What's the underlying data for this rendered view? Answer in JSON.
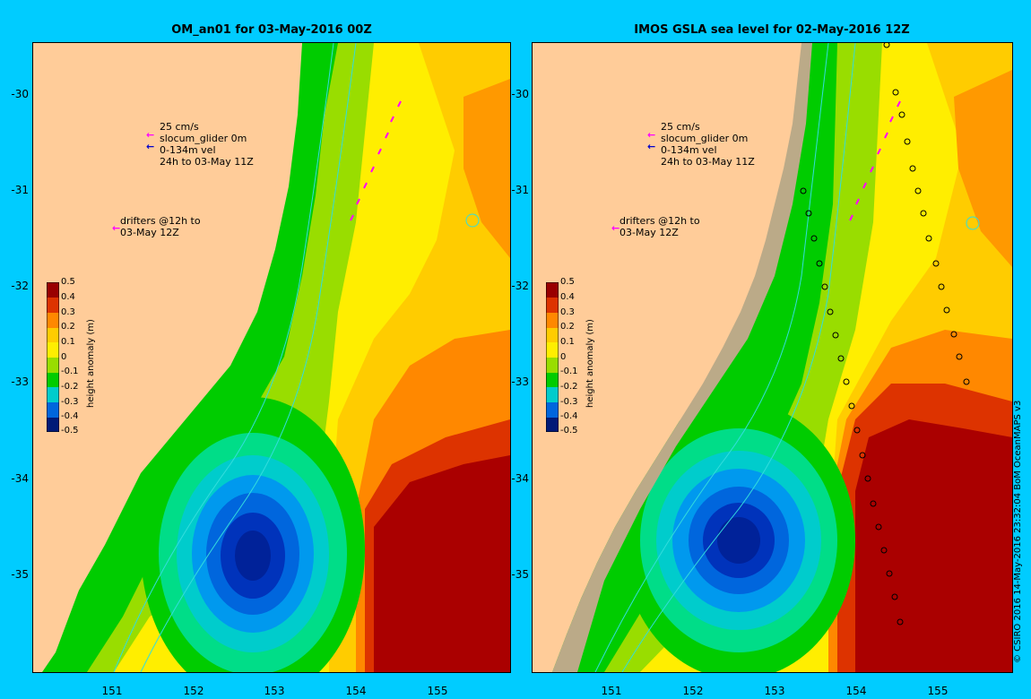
{
  "left_title": "OM_an01 for 03-May-2016 00Z",
  "right_title": "IMOS GSLA sea level  for 02-May-2016 12Z",
  "y_ticks": [
    "-30",
    "-31",
    "-32",
    "-33",
    "-34",
    "-35"
  ],
  "x_ticks": [
    "151",
    "152",
    "153",
    "154",
    "155"
  ],
  "legend_vel": {
    "scale": "25 cm/s",
    "glider": "slocum_glider 0m",
    "vel": "0-134m vel",
    "window": "24h to 03-May 11Z"
  },
  "legend_drifters": {
    "line1": "drifters @12h to",
    "line2": "03-May 12Z"
  },
  "colorbar": {
    "title": "height anomaly (m)",
    "ticks": [
      "0.5",
      "0.4",
      "0.3",
      "0.2",
      "0.1",
      "0",
      "-0.1",
      "-0.2",
      "-0.3",
      "-0.4",
      "-0.5"
    ]
  },
  "credit": "© CSIRO 2016   14-May-2016 23:32:04 BoM OceanMAPS v3",
  "colors": {
    "background": "#00ccff",
    "land": "#ffcc99",
    "shelf": "#bbaa88",
    "arrow_magenta": "#ff00ff",
    "arrow_blue": "#0000cc",
    "contour": "#33dddd"
  },
  "map_extent": {
    "lon": [
      150.3,
      156.15
    ],
    "lat": [
      -36.0,
      -29.5
    ]
  }
}
